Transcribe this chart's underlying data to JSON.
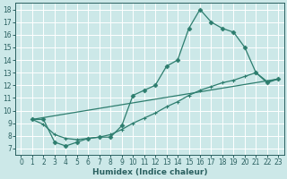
{
  "bg_color": "#cce8e8",
  "grid_color": "#ffffff",
  "line_color": "#2d7d6e",
  "xlabel": "Humidex (Indice chaleur)",
  "xlim": [
    -0.5,
    23.5
  ],
  "ylim": [
    6.5,
    18.5
  ],
  "xticks": [
    0,
    1,
    2,
    3,
    4,
    5,
    6,
    7,
    8,
    9,
    10,
    11,
    12,
    13,
    14,
    15,
    16,
    17,
    18,
    19,
    20,
    21,
    22,
    23
  ],
  "yticks": [
    7,
    8,
    9,
    10,
    11,
    12,
    13,
    14,
    15,
    16,
    17,
    18
  ],
  "line1_x": [
    1,
    2,
    3,
    4,
    5,
    6,
    7,
    8,
    9,
    10,
    11,
    12,
    13,
    14,
    15,
    16,
    17,
    18,
    19,
    20,
    21,
    22,
    23
  ],
  "line1_y": [
    9.3,
    9.3,
    7.5,
    7.2,
    7.5,
    7.8,
    7.9,
    7.9,
    8.8,
    11.2,
    11.6,
    12.0,
    13.5,
    14.0,
    16.5,
    18.0,
    17.0,
    16.5,
    16.2,
    15.0,
    13.0,
    12.2,
    12.5
  ],
  "line2_x": [
    1,
    2,
    3,
    4,
    5,
    6,
    7,
    8,
    9,
    10,
    11,
    12,
    13,
    14,
    15,
    16,
    17,
    18,
    19,
    20,
    21,
    22,
    23
  ],
  "line2_y": [
    9.3,
    8.9,
    8.1,
    7.8,
    7.7,
    7.8,
    7.9,
    8.1,
    8.5,
    9.0,
    9.4,
    9.8,
    10.3,
    10.7,
    11.2,
    11.6,
    11.9,
    12.2,
    12.4,
    12.7,
    13.0,
    12.3,
    12.5
  ],
  "line3_x": [
    1,
    23
  ],
  "line3_y": [
    9.3,
    12.5
  ]
}
